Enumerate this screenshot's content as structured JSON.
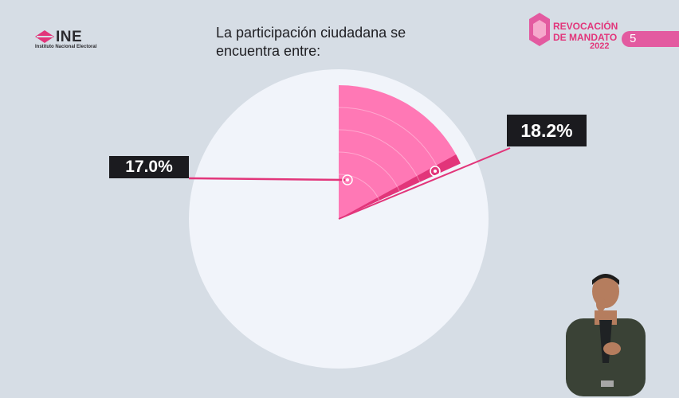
{
  "header": {
    "org_name": "INE",
    "org_subtitle": "Instituto Nacional Electoral",
    "title": "La participación ciudadana se encuentra entre:",
    "event_line1": "REVOCACIÓN",
    "event_line2": "DE MANDATO",
    "event_year": "2022",
    "slide_number": "5"
  },
  "colors": {
    "accent": "#e2357a",
    "range_fill": "#ff78b5",
    "pie_background": "#f1f4fa",
    "label_bg": "#1b1b1f",
    "page_bg": "#d6dde5"
  },
  "chart_data": {
    "type": "pie",
    "unit": "%",
    "range": {
      "low": 17.0,
      "high": 18.2
    },
    "labels": {
      "low": "17.0%",
      "high": "18.2%"
    }
  }
}
